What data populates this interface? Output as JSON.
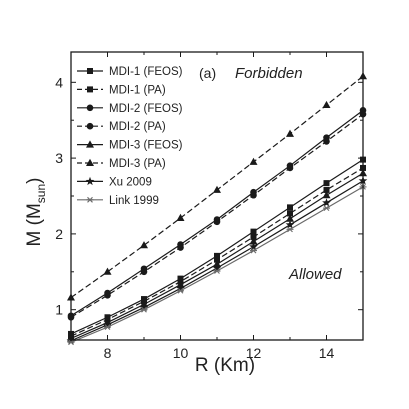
{
  "chart_data": {
    "type": "line",
    "panel_label": "(a)",
    "xlabel": "R (Km)",
    "ylabel": "M (M",
    "ylabel_sub": "sun",
    "ylabel_close": ")",
    "xlim": [
      7,
      15
    ],
    "ylim": [
      0.6,
      4.4
    ],
    "xticks": [
      8,
      10,
      12,
      14
    ],
    "yticks": [
      1,
      2,
      3,
      4
    ],
    "grid": false,
    "legend_position": "top-left",
    "annotations": {
      "upper": "Forbidden",
      "lower": "Allowed"
    },
    "series": [
      {
        "name": "MDI-1 (FEOS)",
        "dash": "solid",
        "marker": "square",
        "x": [
          7,
          8,
          9,
          10,
          11,
          12,
          13,
          14,
          15
        ],
        "y": [
          0.68,
          0.9,
          1.14,
          1.41,
          1.71,
          2.03,
          2.35,
          2.67,
          2.98
        ]
      },
      {
        "name": "MDI-1 (PA)",
        "dash": "dash",
        "marker": "square",
        "x": [
          7,
          8,
          9,
          10,
          11,
          12,
          13,
          14,
          15
        ],
        "y": [
          0.65,
          0.87,
          1.11,
          1.37,
          1.66,
          1.96,
          2.27,
          2.58,
          2.87
        ]
      },
      {
        "name": "MDI-2 (FEOS)",
        "dash": "solid",
        "marker": "circle",
        "x": [
          7,
          8,
          9,
          10,
          11,
          12,
          13,
          14,
          15
        ],
        "y": [
          0.92,
          1.22,
          1.54,
          1.86,
          2.19,
          2.55,
          2.9,
          3.27,
          3.63
        ]
      },
      {
        "name": "MDI-2 (PA)",
        "dash": "dash",
        "marker": "circle",
        "x": [
          7,
          8,
          9,
          10,
          11,
          12,
          13,
          14,
          15
        ],
        "y": [
          0.9,
          1.19,
          1.5,
          1.82,
          2.16,
          2.51,
          2.87,
          3.22,
          3.58
        ]
      },
      {
        "name": "MDI-3 (FEOS)",
        "dash": "solid",
        "marker": "triangle",
        "x": [
          7,
          8,
          9,
          10,
          11,
          12,
          13,
          14,
          15
        ],
        "y": [
          0.62,
          0.83,
          1.07,
          1.33,
          1.6,
          1.9,
          2.2,
          2.51,
          2.8
        ]
      },
      {
        "name": "MDI-3 (PA)",
        "dash": "dash",
        "marker": "triangle",
        "x": [
          7,
          8,
          9,
          10,
          11,
          12,
          13,
          14,
          15
        ],
        "y": [
          1.16,
          1.5,
          1.85,
          2.21,
          2.58,
          2.95,
          3.32,
          3.7,
          4.08
        ]
      },
      {
        "name": "Xu 2009",
        "dash": "solid",
        "marker": "star",
        "x": [
          7,
          8,
          9,
          10,
          11,
          12,
          13,
          14,
          15
        ],
        "y": [
          0.59,
          0.8,
          1.03,
          1.28,
          1.55,
          1.83,
          2.12,
          2.41,
          2.7
        ]
      },
      {
        "name": "Link 1999",
        "dash": "solid",
        "marker": "asterisk",
        "x": [
          7,
          8,
          9,
          10,
          11,
          12,
          13,
          14,
          15
        ],
        "y": [
          0.57,
          0.77,
          1.0,
          1.25,
          1.51,
          1.78,
          2.06,
          2.34,
          2.62
        ]
      }
    ]
  }
}
